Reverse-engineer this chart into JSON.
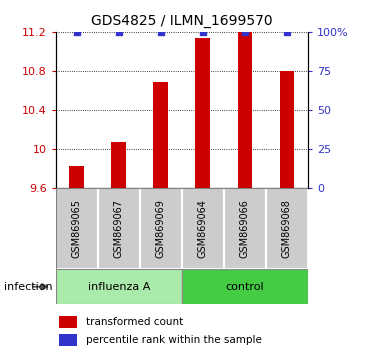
{
  "title": "GDS4825 / ILMN_1699570",
  "samples": [
    "GSM869065",
    "GSM869067",
    "GSM869069",
    "GSM869064",
    "GSM869066",
    "GSM869068"
  ],
  "transformed_counts": [
    9.82,
    10.07,
    10.68,
    11.14,
    11.2,
    10.8
  ],
  "percentile_ranks": [
    100,
    100,
    100,
    100,
    100,
    100
  ],
  "bar_color": "#CC0000",
  "dot_color": "#3333CC",
  "ylim_left": [
    9.6,
    11.2
  ],
  "ylim_right": [
    0,
    100
  ],
  "yticks_left": [
    9.6,
    10.0,
    10.4,
    10.8,
    11.2
  ],
  "yticks_right": [
    0,
    25,
    50,
    75,
    100
  ],
  "ytick_labels_left": [
    "9.6",
    "10",
    "10.4",
    "10.8",
    "11.2"
  ],
  "ytick_labels_right": [
    "0",
    "25",
    "50",
    "75",
    "100%"
  ],
  "bar_width": 0.35,
  "infection_label": "infection",
  "legend_items": [
    {
      "color": "#CC0000",
      "label": "transformed count"
    },
    {
      "color": "#3333CC",
      "label": "percentile rank within the sample"
    }
  ],
  "background_color": "#ffffff",
  "label_area_color": "#cccccc",
  "group_box_color_influenza": "#aaeaaa",
  "group_box_color_control": "#44cc44",
  "group_border_color": "#888888"
}
